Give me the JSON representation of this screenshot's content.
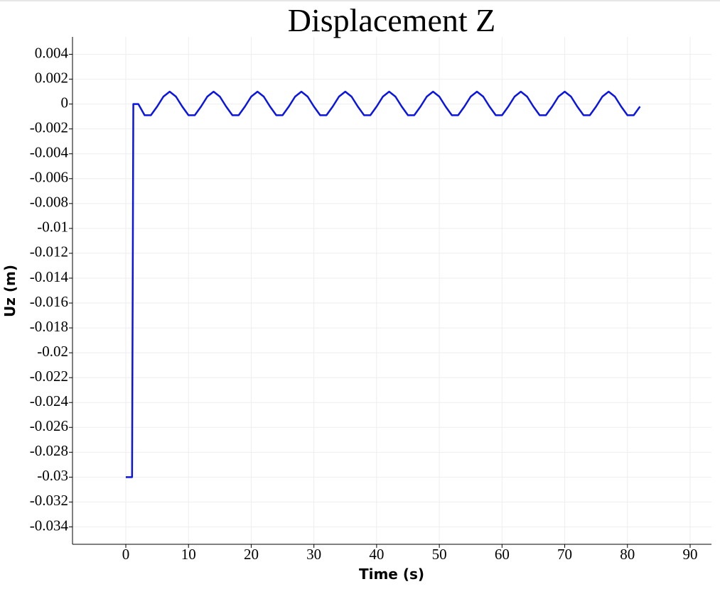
{
  "chart_data": {
    "type": "line",
    "title": "Displacement Z",
    "x_label": "Time (s)",
    "y_label": "Uz (m)",
    "x": [
      0,
      1,
      1.2,
      2,
      3,
      4,
      5,
      6,
      7,
      8,
      9,
      10,
      11,
      12,
      13,
      14,
      15,
      16,
      17,
      18,
      19,
      20,
      21,
      22,
      23,
      24,
      25,
      26,
      27,
      28,
      29,
      30,
      31,
      32,
      33,
      34,
      35,
      36,
      37,
      38,
      39,
      40,
      41,
      42,
      43,
      44,
      45,
      46,
      47,
      48,
      49,
      50,
      51,
      52,
      53,
      54,
      55,
      56,
      57,
      58,
      59,
      60,
      61,
      62,
      63,
      64,
      65,
      66,
      67,
      68,
      69,
      70,
      71,
      72,
      73,
      74,
      75,
      76,
      77,
      78,
      79,
      80,
      81,
      82
    ],
    "series": [
      {
        "name": "Uz",
        "color": "#0a14e6",
        "values": [
          -0.03,
          -0.03,
          0,
          0,
          -0.0009,
          -0.0009,
          -0.0002,
          0.0006,
          0.001,
          0.0006,
          -0.0002,
          -0.0009,
          -0.0009,
          -0.0002,
          0.0006,
          0.001,
          0.0006,
          -0.0002,
          -0.0009,
          -0.0009,
          -0.0002,
          0.0006,
          0.001,
          0.0006,
          -0.0002,
          -0.0009,
          -0.0009,
          -0.0002,
          0.0006,
          0.001,
          0.0006,
          -0.0002,
          -0.0009,
          -0.0009,
          -0.0002,
          0.0006,
          0.001,
          0.0006,
          -0.0002,
          -0.0009,
          -0.0009,
          -0.0002,
          0.0006,
          0.001,
          0.0006,
          -0.0002,
          -0.0009,
          -0.0009,
          -0.0002,
          0.0006,
          0.001,
          0.0006,
          -0.0002,
          -0.0009,
          -0.0009,
          -0.0002,
          0.0006,
          0.001,
          0.0006,
          -0.0002,
          -0.0009,
          -0.0009,
          -0.0002,
          0.0006,
          0.001,
          0.0006,
          -0.0002,
          -0.0009,
          -0.0009,
          -0.0002,
          0.0006,
          0.001,
          0.0006,
          -0.0002,
          -0.0009,
          -0.0009,
          -0.0002,
          0.0006,
          0.001,
          0.0006,
          -0.0002,
          -0.0009,
          -0.0009,
          -0.0002
        ]
      }
    ],
    "xlim": [
      -8.5,
      93.4
    ],
    "ylim": [
      -0.0354,
      0.0054
    ],
    "xticks": [
      0,
      10,
      20,
      30,
      40,
      50,
      60,
      70,
      80,
      90
    ],
    "yticks": [
      0.004,
      0.002,
      0,
      -0.002,
      -0.004,
      -0.006,
      -0.008,
      -0.01,
      -0.012,
      -0.014,
      -0.016,
      -0.018,
      -0.02,
      -0.022,
      -0.024,
      -0.026,
      -0.028,
      -0.03,
      -0.032,
      -0.034
    ],
    "grid": true
  }
}
